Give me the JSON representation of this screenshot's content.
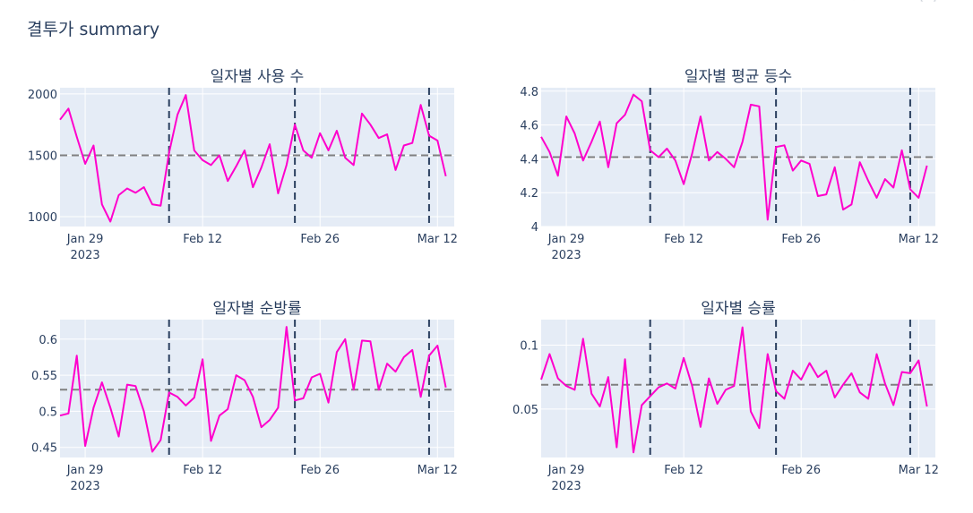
{
  "title": "결투가 summary",
  "modebar_icons": [
    "camera-icon",
    "zoom-icon",
    "pan-icon",
    "zoom-in-icon",
    "zoom-out-icon",
    "autoscale-icon",
    "reset-icon"
  ],
  "colors": {
    "line": "#ff00cc",
    "mean": "#808080",
    "vline": "#2a3f5f",
    "plot_bg": "#e5ecf6",
    "grid": "#ffffff"
  },
  "chart_data": [
    {
      "type": "line",
      "title": "일자별 사용 수",
      "x_start": "2023-01-26",
      "x_range": [
        "2023-01-26",
        "2023-03-14"
      ],
      "x_ticks": [
        {
          "date": "2023-01-29",
          "label": "Jan 29",
          "sub": "2023"
        },
        {
          "date": "2023-02-12",
          "label": "Feb 12",
          "sub": ""
        },
        {
          "date": "2023-02-26",
          "label": "Feb 26",
          "sub": ""
        },
        {
          "date": "2023-03-12",
          "label": "Mar 12",
          "sub": ""
        }
      ],
      "ylim": [
        920,
        2050
      ],
      "y_ticks": [
        1000,
        1500,
        2000
      ],
      "y_tick_labels": [
        "1000",
        "1500",
        "2000"
      ],
      "mean": 1500,
      "vlines": [
        "2023-02-08",
        "2023-02-23",
        "2023-03-11"
      ],
      "values": [
        1790,
        1880,
        1650,
        1430,
        1580,
        1100,
        960,
        1175,
        1230,
        1195,
        1240,
        1100,
        1090,
        1520,
        1830,
        1990,
        1540,
        1460,
        1420,
        1500,
        1290,
        1410,
        1540,
        1240,
        1400,
        1590,
        1190,
        1420,
        1750,
        1540,
        1480,
        1680,
        1540,
        1700,
        1480,
        1420,
        1840,
        1750,
        1640,
        1670,
        1380,
        1580,
        1600,
        1910,
        1660,
        1620,
        1330
      ]
    },
    {
      "type": "line",
      "title": "일자별 평균 등수",
      "x_start": "2023-01-26",
      "x_range": [
        "2023-01-26",
        "2023-03-14"
      ],
      "x_ticks": [
        {
          "date": "2023-01-29",
          "label": "Jan 29",
          "sub": "2023"
        },
        {
          "date": "2023-02-12",
          "label": "Feb 12",
          "sub": ""
        },
        {
          "date": "2023-02-26",
          "label": "Feb 26",
          "sub": ""
        },
        {
          "date": "2023-03-12",
          "label": "Mar 12",
          "sub": ""
        }
      ],
      "ylim": [
        4.0,
        4.82
      ],
      "y_ticks": [
        4.0,
        4.2,
        4.4,
        4.6,
        4.8
      ],
      "y_tick_labels": [
        "4",
        "4.2",
        "4.4",
        "4.6",
        "4.8"
      ],
      "mean": 4.41,
      "vlines": [
        "2023-02-08",
        "2023-02-23",
        "2023-03-11"
      ],
      "values": [
        4.53,
        4.44,
        4.3,
        4.65,
        4.55,
        4.39,
        4.5,
        4.62,
        4.35,
        4.61,
        4.66,
        4.78,
        4.74,
        4.45,
        4.41,
        4.46,
        4.39,
        4.25,
        4.43,
        4.65,
        4.39,
        4.44,
        4.4,
        4.35,
        4.5,
        4.72,
        4.71,
        4.04,
        4.47,
        4.48,
        4.33,
        4.39,
        4.37,
        4.18,
        4.19,
        4.35,
        4.1,
        4.13,
        4.38,
        4.27,
        4.17,
        4.28,
        4.23,
        4.45,
        4.22,
        4.17,
        4.36
      ]
    },
    {
      "type": "line",
      "title": "일자별 순방률",
      "x_start": "2023-01-26",
      "x_range": [
        "2023-01-26",
        "2023-03-14"
      ],
      "x_ticks": [
        {
          "date": "2023-01-29",
          "label": "Jan 29",
          "sub": "2023"
        },
        {
          "date": "2023-02-12",
          "label": "Feb 12",
          "sub": ""
        },
        {
          "date": "2023-02-26",
          "label": "Feb 26",
          "sub": ""
        },
        {
          "date": "2023-03-12",
          "label": "Mar 12",
          "sub": ""
        }
      ],
      "ylim": [
        0.436,
        0.627
      ],
      "y_ticks": [
        0.45,
        0.5,
        0.55,
        0.6
      ],
      "y_tick_labels": [
        "0.45",
        "0.5",
        "0.55",
        "0.6"
      ],
      "mean": 0.53,
      "vlines": [
        "2023-02-08",
        "2023-02-23",
        "2023-03-11"
      ],
      "values": [
        0.494,
        0.497,
        0.577,
        0.452,
        0.505,
        0.54,
        0.505,
        0.465,
        0.537,
        0.535,
        0.5,
        0.444,
        0.46,
        0.526,
        0.52,
        0.508,
        0.519,
        0.572,
        0.459,
        0.494,
        0.503,
        0.55,
        0.543,
        0.52,
        0.478,
        0.488,
        0.505,
        0.617,
        0.515,
        0.518,
        0.547,
        0.552,
        0.512,
        0.582,
        0.6,
        0.53,
        0.598,
        0.597,
        0.53,
        0.566,
        0.555,
        0.575,
        0.585,
        0.52,
        0.577,
        0.591,
        0.533
      ]
    },
    {
      "type": "line",
      "title": "일자별 승률",
      "x_start": "2023-01-26",
      "x_range": [
        "2023-01-26",
        "2023-03-14"
      ],
      "x_ticks": [
        {
          "date": "2023-01-29",
          "label": "Jan 29",
          "sub": "2023"
        },
        {
          "date": "2023-02-12",
          "label": "Feb 12",
          "sub": ""
        },
        {
          "date": "2023-02-26",
          "label": "Feb 26",
          "sub": ""
        },
        {
          "date": "2023-03-12",
          "label": "Mar 12",
          "sub": ""
        }
      ],
      "ylim": [
        0.012,
        0.12
      ],
      "y_ticks": [
        0.05,
        0.1
      ],
      "y_tick_labels": [
        "0.05",
        "0.1"
      ],
      "mean": 0.069,
      "vlines": [
        "2023-02-08",
        "2023-02-23",
        "2023-03-11"
      ],
      "values": [
        0.073,
        0.093,
        0.074,
        0.068,
        0.065,
        0.105,
        0.062,
        0.052,
        0.075,
        0.02,
        0.089,
        0.016,
        0.053,
        0.06,
        0.067,
        0.07,
        0.066,
        0.09,
        0.068,
        0.036,
        0.074,
        0.054,
        0.065,
        0.068,
        0.114,
        0.048,
        0.035,
        0.093,
        0.064,
        0.058,
        0.08,
        0.073,
        0.086,
        0.075,
        0.08,
        0.059,
        0.069,
        0.078,
        0.063,
        0.058,
        0.093,
        0.07,
        0.053,
        0.079,
        0.078,
        0.088,
        0.052
      ]
    }
  ]
}
